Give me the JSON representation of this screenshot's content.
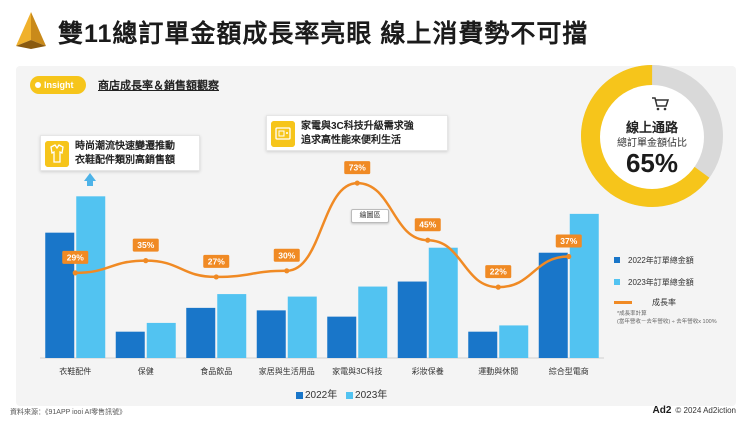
{
  "header": {
    "title": "雙11總訂單金額成長率亮眼 線上消費勢不可擋"
  },
  "insight": {
    "pill_label": "Insight",
    "subtitle": "商店成長率＆銷售額觀察"
  },
  "callouts": {
    "fashion": {
      "line1": "時尚潮流快速變遷推動",
      "line2": "衣鞋配件類別高銷售額",
      "icon": "clothing-icon"
    },
    "electronics": {
      "line1": "家電與3C科技升級需求強",
      "line2": "追求高性能來便利生活",
      "icon": "appliance-icon"
    }
  },
  "tag_label": "繪圖區",
  "donut": {
    "title": "線上通路",
    "subtitle": "總訂單金額佔比",
    "value_text": "65%",
    "value": 65,
    "color_main": "#f6c51b",
    "color_rest": "#d9d9d9",
    "icon": "shopping-cart-icon"
  },
  "legend_right": {
    "item_2022": "2022年訂單總金額",
    "item_2023": "2023年訂單總金額",
    "item_growth": "成長率",
    "note_line1": "*成長率計算",
    "note_line2": "(當年營收－去年營收) ÷ 去年營收x 100%"
  },
  "bottom_legend": {
    "label_2022": "2022年",
    "label_2023": "2023年"
  },
  "footer": {
    "source": "資料來源：《91APP iooi AI零售訊號》",
    "brand": "Ad2",
    "copyright": "© 2024 Ad2iction"
  },
  "colors": {
    "bar_2022": "#1976c9",
    "bar_2023": "#52c3f1",
    "growth_line": "#f08a24",
    "accent": "#f6c51b"
  },
  "chart_data": {
    "type": "bar",
    "categories": [
      "衣鞋配件",
      "保健",
      "食品飲品",
      "家居與生活用品",
      "家電與3C科技",
      "彩妝保養",
      "運動與休閒",
      "綜合型電商"
    ],
    "series": [
      {
        "name": "2022年",
        "values": [
          100,
          21,
          40,
          38,
          33,
          61,
          21,
          84
        ]
      },
      {
        "name": "2023年",
        "values": [
          129,
          28,
          51,
          49,
          57,
          88,
          26,
          115
        ]
      }
    ],
    "growth": {
      "name": "成長率",
      "values": [
        29,
        35,
        27,
        30,
        73,
        45,
        22,
        37
      ],
      "labels": [
        "29%",
        "35%",
        "27%",
        "30%",
        "73%",
        "45%",
        "22%",
        "37%"
      ]
    },
    "ylim": [
      0,
      150
    ],
    "growth_ylim": [
      0,
      100
    ],
    "grid": false,
    "legend": "right"
  }
}
